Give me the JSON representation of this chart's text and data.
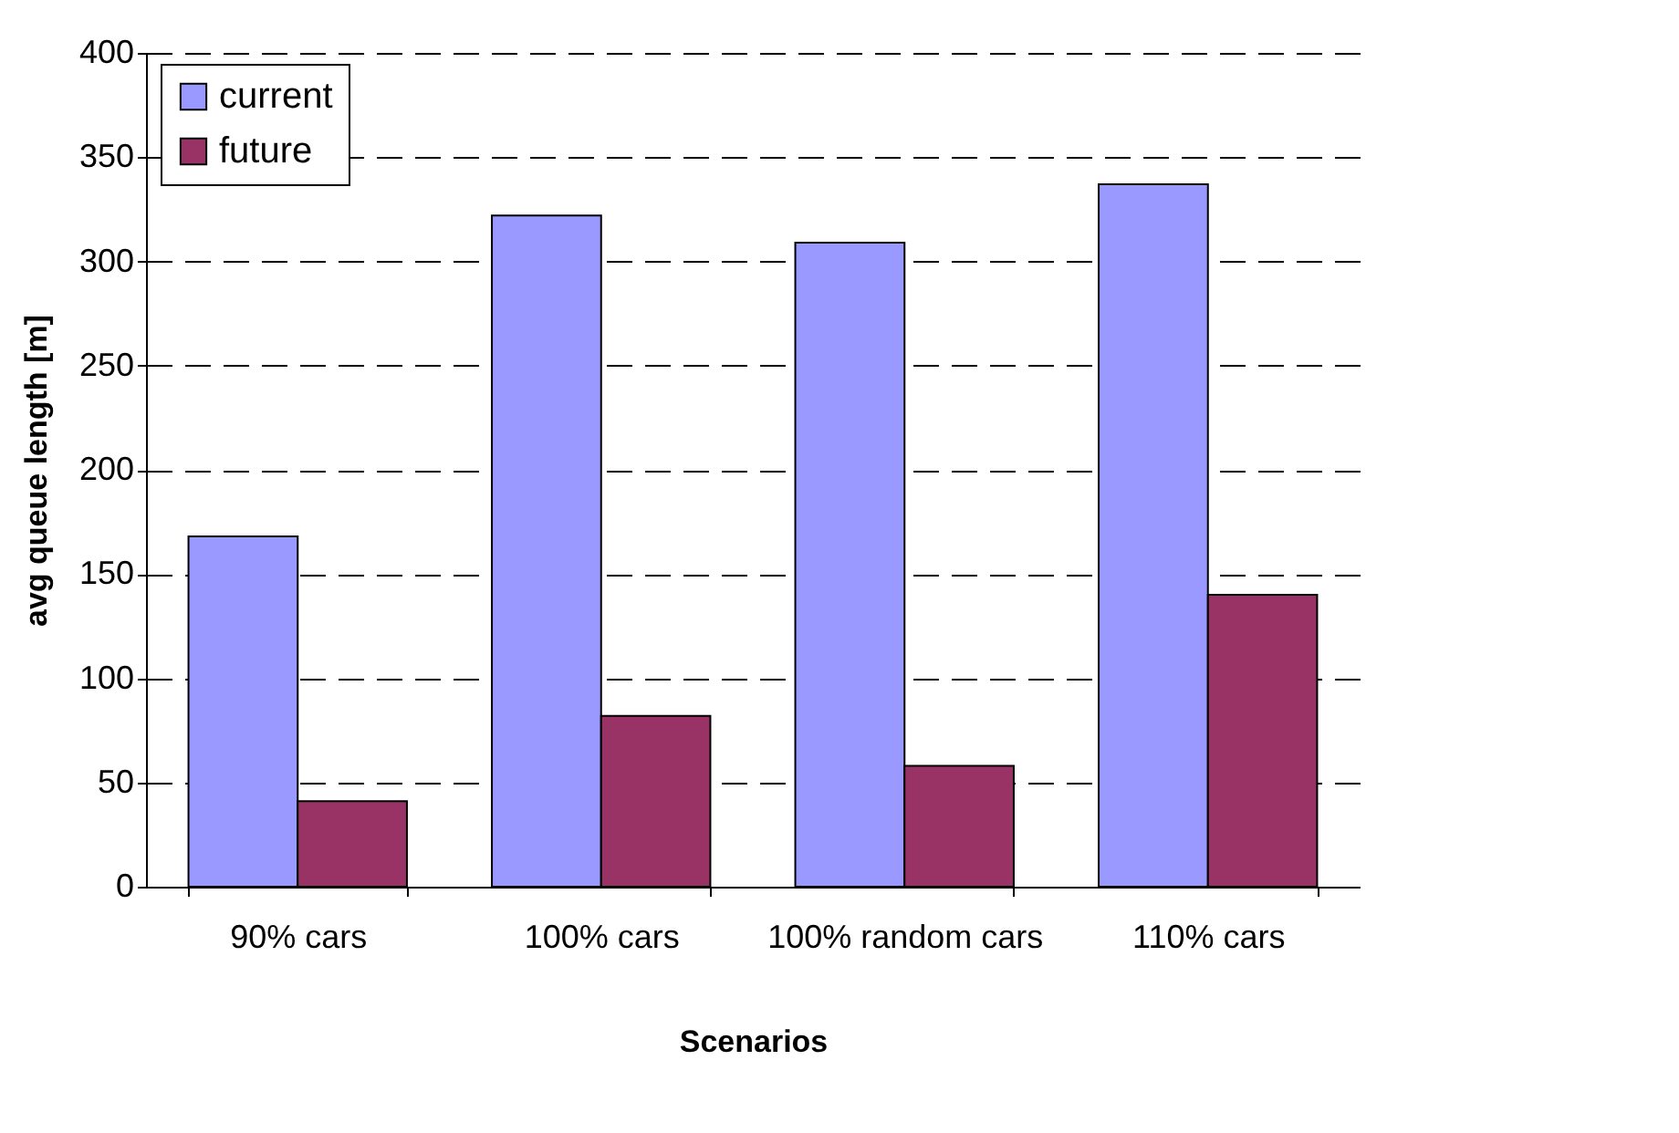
{
  "chart_data": {
    "type": "bar",
    "xlabel": "Scenarios",
    "ylabel": "avg queue length [m]",
    "categories": [
      "90% cars",
      "100% cars",
      "100% random cars",
      "110% cars"
    ],
    "series": [
      {
        "name": "current",
        "color": "#9999ff",
        "values": [
          168,
          322,
          309,
          337
        ]
      },
      {
        "name": "future",
        "color": "#993366",
        "values": [
          41,
          82,
          58,
          140
        ]
      }
    ],
    "ylim": [
      0,
      400
    ],
    "yticks": [
      0,
      50,
      100,
      150,
      200,
      250,
      300,
      350,
      400
    ],
    "grid": "y",
    "legend": "top left"
  }
}
